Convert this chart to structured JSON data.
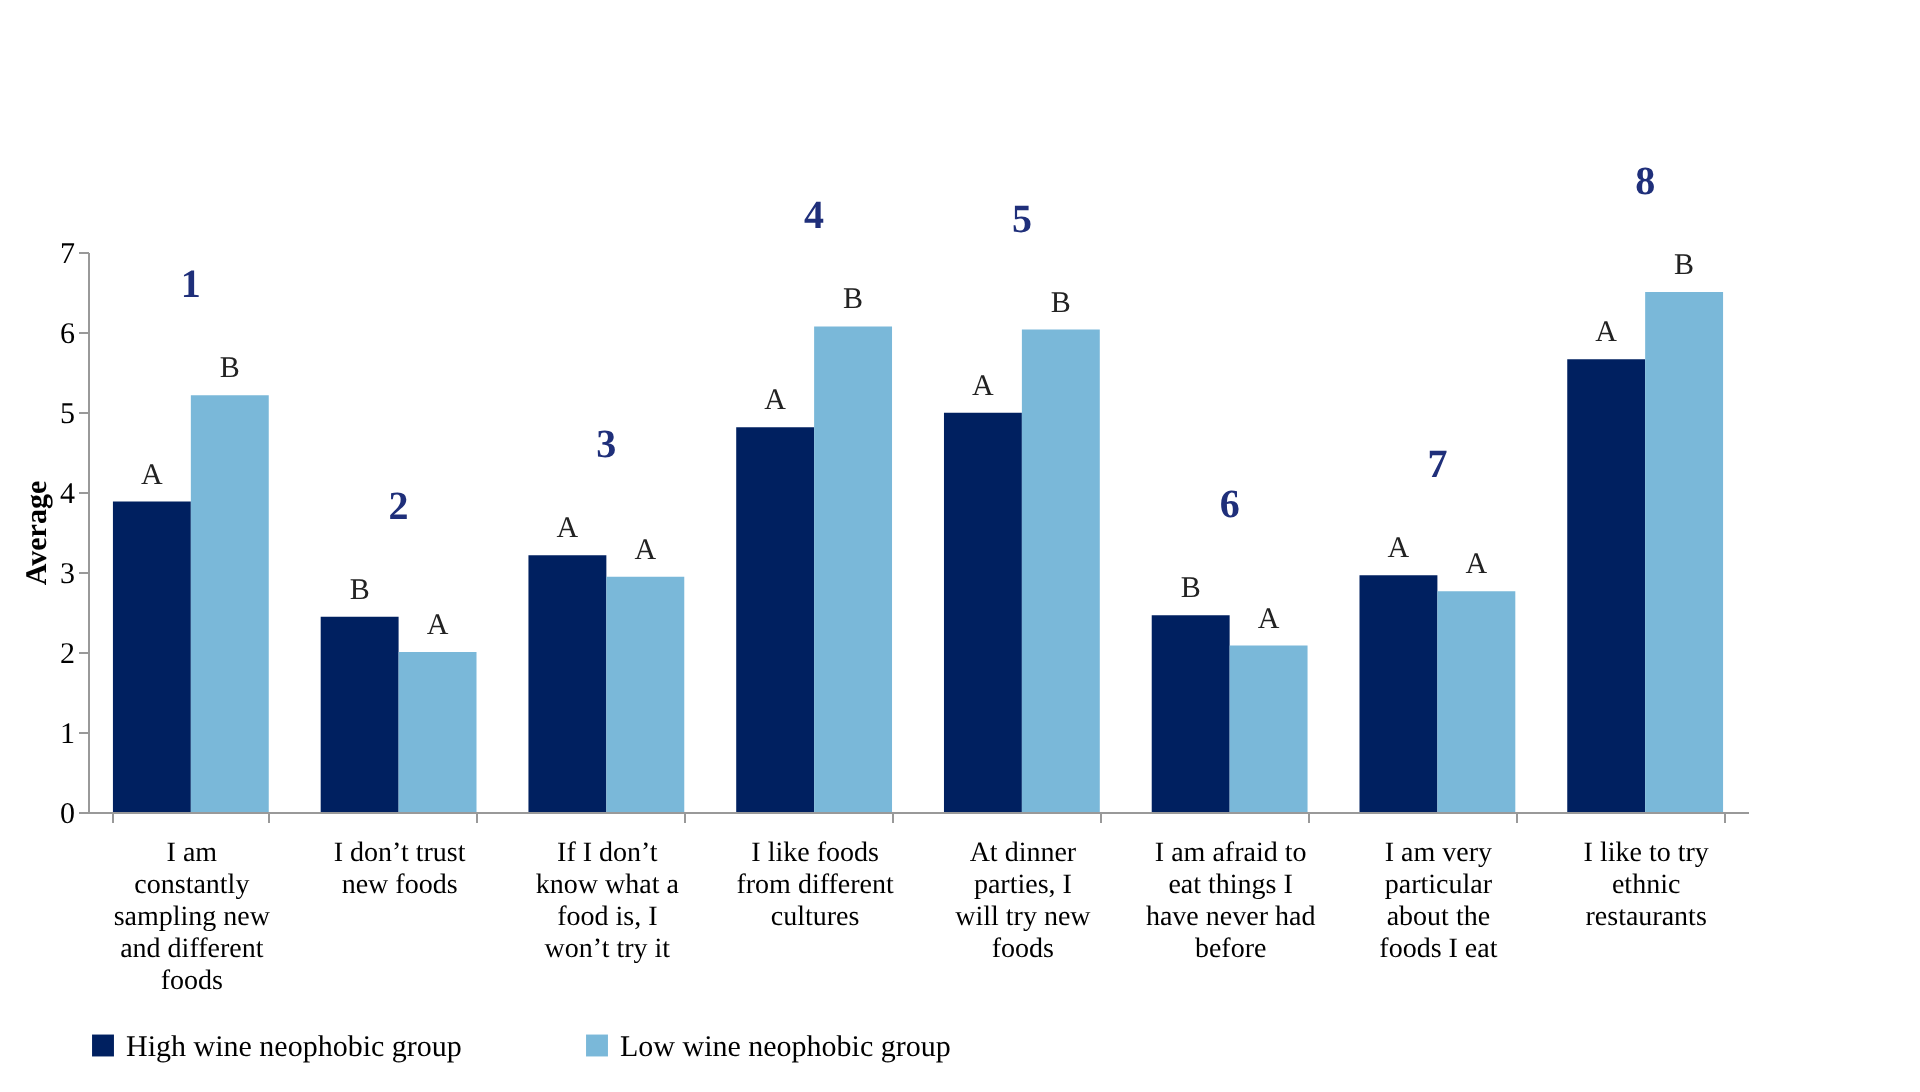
{
  "chart_data": {
    "type": "bar",
    "ylabel": "Average",
    "categories": [
      "I am constantly sampling new and different foods",
      "I don’t trust new foods",
      "If I don’t know what a food is, I won’t try it",
      "I like foods from different cultures",
      "At dinner parties, I will try new foods",
      "I am afraid to eat things I have never had before",
      "I am very particular about the foods I eat",
      "I like to try ethnic restaurants"
    ],
    "series": [
      {
        "name": "High wine neophobic group",
        "color": "#002060",
        "values": [
          3.88,
          2.44,
          3.21,
          4.81,
          4.99,
          2.46,
          2.96,
          5.66
        ],
        "value_labels": [
          "A",
          "B",
          "A",
          "A",
          "A",
          "B",
          "A",
          "A"
        ]
      },
      {
        "name": "Low wine neophobic group",
        "color": "#7ab8d9",
        "values": [
          5.21,
          2.0,
          2.94,
          6.07,
          6.03,
          2.08,
          2.76,
          6.5
        ],
        "value_labels": [
          "B",
          "A",
          "A",
          "B",
          "B",
          "A",
          "A",
          "B"
        ]
      }
    ],
    "annotations": [
      "1",
      "2",
      "3",
      "4",
      "5",
      "6",
      "7",
      "8"
    ],
    "ylim": [
      0,
      7
    ],
    "yticks": [
      0,
      1,
      2,
      3,
      4,
      5,
      6,
      7
    ],
    "grid": false,
    "legend": "bottom"
  }
}
